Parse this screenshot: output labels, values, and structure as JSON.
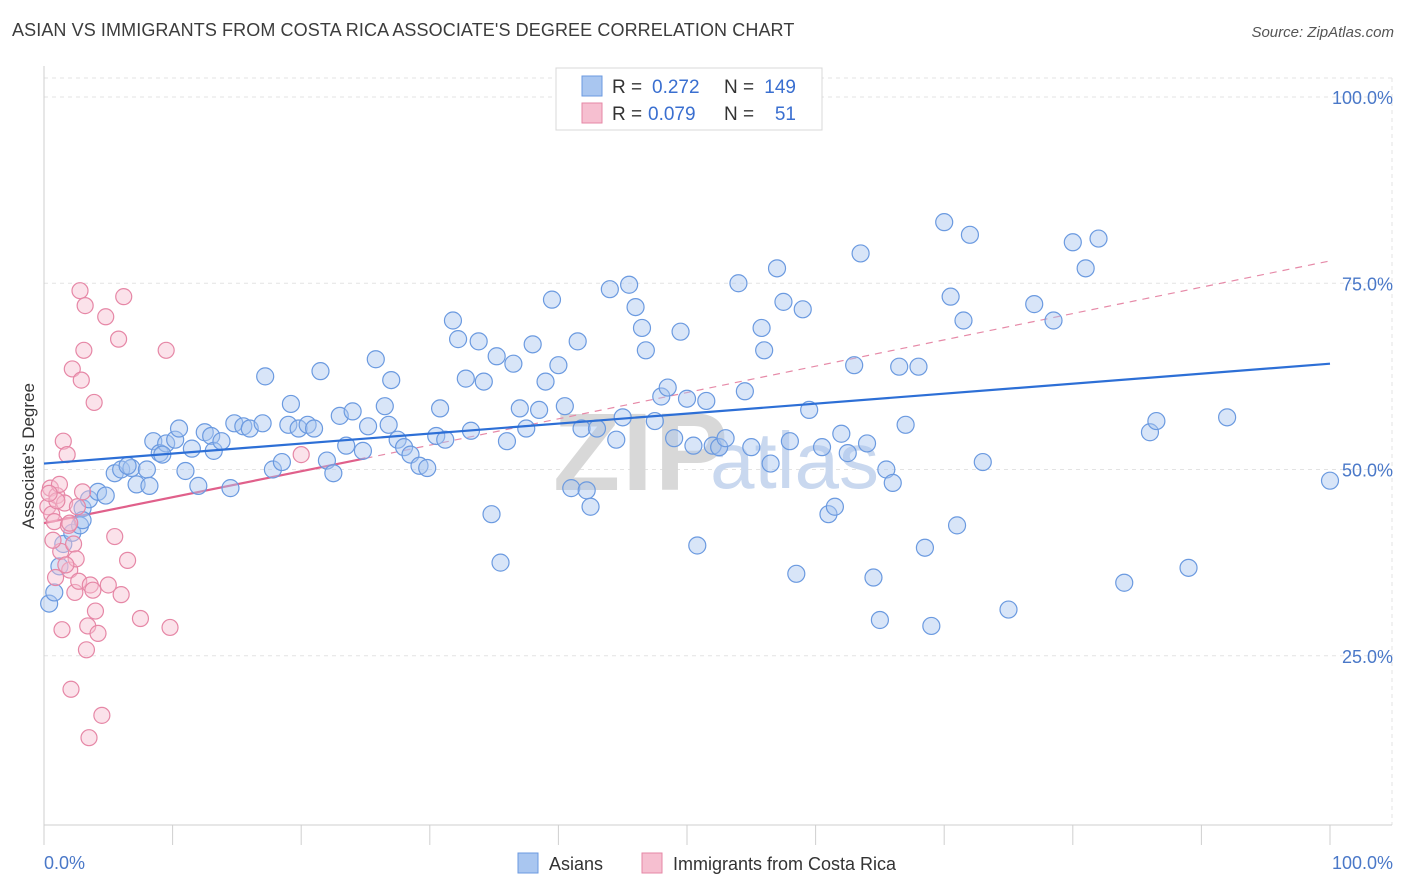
{
  "title": "ASIAN VS IMMIGRANTS FROM COSTA RICA ASSOCIATE'S DEGREE CORRELATION CHART",
  "source": "Source: ZipAtlas.com",
  "watermark": {
    "zip": "ZIP",
    "atlas": "atlas"
  },
  "legend": {
    "r_label": "R =",
    "n_label": "N =",
    "rows": [
      {
        "r": "0.272",
        "n": "149",
        "color": "#a9c6f0",
        "stroke": "#6b9ae0"
      },
      {
        "r": "0.079",
        "n": "51",
        "color": "#f6bfd0",
        "stroke": "#e687a6"
      }
    ]
  },
  "bottom_legend": [
    {
      "label": "Asians",
      "color": "#a9c6f0",
      "stroke": "#6b9ae0"
    },
    {
      "label": "Immigrants from Costa Rica",
      "color": "#f6bfd0",
      "stroke": "#e687a6"
    }
  ],
  "chart_data": {
    "type": "scatter",
    "xlabel": "",
    "ylabel": "Associate's Degree",
    "xlim": [
      0,
      100
    ],
    "ylim": [
      0,
      105
    ],
    "x_tick_labels": [
      "0.0%",
      "100.0%"
    ],
    "y_ticks": [
      {
        "value": 25,
        "label": "25.0%"
      },
      {
        "value": 50,
        "label": "50.0%"
      },
      {
        "value": 75,
        "label": "75.0%"
      },
      {
        "value": 100,
        "label": "100.0%"
      }
    ],
    "grid": true,
    "legend_position": "top-center",
    "colors": {
      "asians": "#3b78d8",
      "costa_rica": "#e86a95"
    },
    "series": [
      {
        "name": "Asians",
        "trend": {
          "x0": 0,
          "y0": 50.8,
          "x1": 100,
          "y1": 64.2
        },
        "points": [
          [
            0.4,
            32.0
          ],
          [
            0.8,
            33.5
          ],
          [
            1.2,
            37.0
          ],
          [
            1.5,
            40.0
          ],
          [
            2.2,
            41.5
          ],
          [
            2.8,
            42.5
          ],
          [
            3.0,
            44.8
          ],
          [
            3.5,
            46.0
          ],
          [
            4.2,
            47.0
          ],
          [
            4.8,
            46.5
          ],
          [
            5.5,
            49.5
          ],
          [
            6.0,
            50.0
          ],
          [
            6.8,
            50.2
          ],
          [
            7.2,
            48.0
          ],
          [
            8.0,
            50.0
          ],
          [
            8.2,
            47.8
          ],
          [
            8.5,
            53.8
          ],
          [
            9.0,
            52.2
          ],
          [
            9.5,
            53.5
          ],
          [
            10.2,
            54.0
          ],
          [
            10.5,
            55.5
          ],
          [
            11.0,
            49.8
          ],
          [
            11.5,
            52.8
          ],
          [
            12.0,
            47.8
          ],
          [
            12.5,
            55.0
          ],
          [
            13.0,
            54.5
          ],
          [
            13.2,
            52.5
          ],
          [
            13.8,
            53.8
          ],
          [
            14.5,
            47.5
          ],
          [
            14.8,
            56.2
          ],
          [
            15.5,
            55.8
          ],
          [
            16.0,
            55.5
          ],
          [
            17.0,
            56.2
          ],
          [
            17.2,
            62.5
          ],
          [
            17.8,
            50.0
          ],
          [
            18.5,
            51.0
          ],
          [
            19.0,
            56.0
          ],
          [
            19.2,
            58.8
          ],
          [
            19.8,
            55.5
          ],
          [
            20.5,
            56.0
          ],
          [
            21.0,
            55.5
          ],
          [
            21.5,
            63.2
          ],
          [
            22.0,
            51.2
          ],
          [
            22.5,
            49.5
          ],
          [
            23.0,
            57.2
          ],
          [
            23.5,
            53.2
          ],
          [
            24.0,
            57.8
          ],
          [
            24.8,
            52.5
          ],
          [
            25.2,
            55.8
          ],
          [
            25.8,
            64.8
          ],
          [
            26.5,
            58.5
          ],
          [
            26.8,
            56.0
          ],
          [
            27.0,
            62.0
          ],
          [
            27.5,
            54.0
          ],
          [
            28.0,
            53.0
          ],
          [
            28.5,
            52.0
          ],
          [
            29.2,
            50.5
          ],
          [
            29.8,
            50.2
          ],
          [
            30.5,
            54.5
          ],
          [
            30.8,
            58.2
          ],
          [
            31.2,
            54.0
          ],
          [
            31.8,
            70.0
          ],
          [
            32.2,
            67.5
          ],
          [
            32.8,
            62.2
          ],
          [
            33.2,
            55.2
          ],
          [
            33.8,
            67.2
          ],
          [
            34.2,
            61.8
          ],
          [
            34.8,
            44.0
          ],
          [
            35.2,
            65.2
          ],
          [
            35.5,
            37.5
          ],
          [
            36.0,
            53.8
          ],
          [
            36.5,
            64.2
          ],
          [
            37.0,
            58.2
          ],
          [
            37.5,
            55.5
          ],
          [
            38.0,
            66.8
          ],
          [
            38.5,
            58.0
          ],
          [
            39.0,
            61.8
          ],
          [
            39.5,
            72.8
          ],
          [
            40.0,
            64.0
          ],
          [
            40.5,
            58.5
          ],
          [
            41.0,
            47.5
          ],
          [
            41.5,
            67.2
          ],
          [
            41.8,
            55.5
          ],
          [
            42.2,
            47.2
          ],
          [
            42.5,
            45.0
          ],
          [
            43.0,
            55.5
          ],
          [
            44.0,
            74.2
          ],
          [
            44.5,
            54.0
          ],
          [
            45.0,
            57.0
          ],
          [
            45.5,
            74.8
          ],
          [
            46.0,
            71.8
          ],
          [
            46.5,
            69.0
          ],
          [
            46.8,
            66.0
          ],
          [
            47.5,
            56.5
          ],
          [
            48.0,
            59.8
          ],
          [
            48.5,
            61.0
          ],
          [
            49.0,
            54.2
          ],
          [
            49.5,
            68.5
          ],
          [
            50.0,
            59.5
          ],
          [
            50.5,
            53.2
          ],
          [
            50.8,
            39.8
          ],
          [
            51.5,
            59.2
          ],
          [
            52.0,
            53.2
          ],
          [
            52.5,
            53.0
          ],
          [
            53.0,
            54.2
          ],
          [
            54.0,
            75.0
          ],
          [
            54.5,
            60.5
          ],
          [
            55.0,
            53.0
          ],
          [
            55.8,
            69.0
          ],
          [
            56.0,
            66.0
          ],
          [
            56.5,
            50.8
          ],
          [
            57.0,
            77.0
          ],
          [
            57.5,
            72.5
          ],
          [
            58.0,
            53.8
          ],
          [
            58.5,
            36.0
          ],
          [
            59.0,
            71.5
          ],
          [
            59.5,
            58.0
          ],
          [
            60.5,
            53.0
          ],
          [
            61.0,
            44.0
          ],
          [
            61.5,
            45.0
          ],
          [
            62.0,
            54.8
          ],
          [
            62.5,
            52.2
          ],
          [
            63.0,
            64.0
          ],
          [
            63.5,
            79.0
          ],
          [
            64.0,
            53.5
          ],
          [
            64.5,
            35.5
          ],
          [
            65.0,
            29.8
          ],
          [
            65.5,
            50.0
          ],
          [
            66.0,
            48.2
          ],
          [
            66.5,
            63.8
          ],
          [
            67.0,
            56.0
          ],
          [
            68.0,
            63.8
          ],
          [
            68.5,
            39.5
          ],
          [
            69.0,
            29.0
          ],
          [
            70.0,
            83.2
          ],
          [
            70.5,
            73.2
          ],
          [
            71.0,
            42.5
          ],
          [
            71.5,
            70.0
          ],
          [
            72.0,
            81.5
          ],
          [
            73.0,
            51.0
          ],
          [
            75.0,
            31.2
          ],
          [
            77.0,
            72.2
          ],
          [
            78.5,
            70.0
          ],
          [
            80.0,
            80.5
          ],
          [
            81.0,
            77.0
          ],
          [
            82.0,
            81.0
          ],
          [
            84.0,
            34.8
          ],
          [
            86.0,
            55.0
          ],
          [
            86.5,
            56.5
          ],
          [
            89.0,
            36.8
          ],
          [
            100.0,
            48.5
          ],
          [
            92.0,
            57.0
          ],
          [
            3.0,
            43.2
          ],
          [
            6.5,
            50.5
          ],
          [
            9.2,
            52.0
          ]
        ]
      },
      {
        "name": "Immigrants from Costa Rica",
        "trend": {
          "x0": 0,
          "y0": 42.8,
          "x1": 25,
          "y1": 51.5
        },
        "dashed_extension": {
          "x0": 25,
          "y0": 51.5,
          "x1": 100,
          "y1": 78.0
        },
        "points": [
          [
            0.3,
            45.0
          ],
          [
            0.5,
            47.5
          ],
          [
            0.6,
            44.0
          ],
          [
            0.8,
            43.0
          ],
          [
            0.9,
            35.5
          ],
          [
            1.0,
            46.5
          ],
          [
            1.2,
            48.0
          ],
          [
            1.3,
            39.0
          ],
          [
            1.4,
            28.5
          ],
          [
            1.5,
            53.8
          ],
          [
            1.6,
            45.5
          ],
          [
            1.8,
            52.0
          ],
          [
            1.9,
            42.5
          ],
          [
            2.0,
            36.5
          ],
          [
            2.1,
            20.5
          ],
          [
            2.2,
            63.5
          ],
          [
            2.3,
            40.0
          ],
          [
            2.4,
            33.5
          ],
          [
            2.5,
            38.0
          ],
          [
            2.6,
            45.0
          ],
          [
            2.7,
            35.0
          ],
          [
            2.8,
            74.0
          ],
          [
            2.9,
            62.0
          ],
          [
            3.0,
            47.0
          ],
          [
            3.1,
            66.0
          ],
          [
            3.2,
            72.0
          ],
          [
            3.3,
            25.8
          ],
          [
            3.4,
            29.0
          ],
          [
            3.5,
            14.0
          ],
          [
            3.6,
            34.5
          ],
          [
            3.8,
            33.8
          ],
          [
            3.9,
            59.0
          ],
          [
            4.0,
            31.0
          ],
          [
            4.2,
            28.0
          ],
          [
            4.5,
            17.0
          ],
          [
            4.8,
            70.5
          ],
          [
            5.0,
            34.5
          ],
          [
            5.5,
            41.0
          ],
          [
            5.8,
            67.5
          ],
          [
            6.0,
            33.2
          ],
          [
            6.2,
            73.2
          ],
          [
            6.5,
            37.8
          ],
          [
            7.5,
            30.0
          ],
          [
            9.5,
            66.0
          ],
          [
            9.8,
            28.8
          ],
          [
            20.0,
            52.0
          ],
          [
            1.0,
            45.8
          ],
          [
            0.4,
            46.8
          ],
          [
            2.0,
            42.8
          ],
          [
            1.7,
            37.2
          ],
          [
            0.7,
            40.5
          ]
        ]
      }
    ]
  }
}
